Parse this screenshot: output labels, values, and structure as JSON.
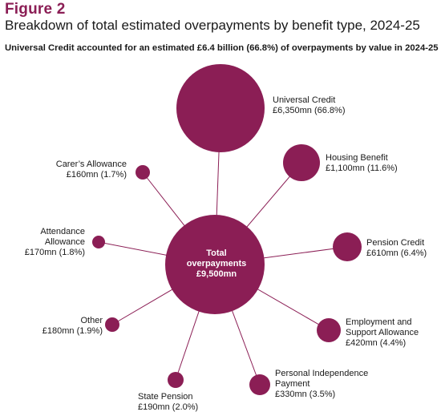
{
  "figure_label": "Figure 2",
  "title": "Breakdown of total estimated overpayments by benefit type, 2024-25",
  "subtitle": "Universal Credit accounted for an estimated £6.4 billion (66.8%) of overpayments by value in 2024-25",
  "colors": {
    "bubble": "#8b1e55",
    "line": "#8b1e55",
    "heading": "#8b1e55"
  },
  "center": {
    "line1": "Total",
    "line2": "overpayments",
    "line3": "£9,500mn"
  },
  "nodes": [
    {
      "id": "universal-credit",
      "lines": [
        "Universal Credit",
        "£6,350mn (66.8%)"
      ],
      "value_mn": 6350,
      "share_pct": 66.8
    },
    {
      "id": "housing-benefit",
      "lines": [
        "Housing Benefit",
        "£1,100mn (11.6%)"
      ],
      "value_mn": 1100,
      "share_pct": 11.6
    },
    {
      "id": "pension-credit",
      "lines": [
        "Pension Credit",
        "£610mn (6.4%)"
      ],
      "value_mn": 610,
      "share_pct": 6.4
    },
    {
      "id": "esa",
      "lines": [
        "Employment and",
        "Support Allowance",
        "£420mn (4.4%)"
      ],
      "value_mn": 420,
      "share_pct": 4.4
    },
    {
      "id": "pip",
      "lines": [
        "Personal Independence",
        "Payment",
        "£330mn (3.5%)"
      ],
      "value_mn": 330,
      "share_pct": 3.5
    },
    {
      "id": "state-pension",
      "lines": [
        "State Pension",
        "£190mn (2.0%)"
      ],
      "value_mn": 190,
      "share_pct": 2.0
    },
    {
      "id": "other",
      "lines": [
        "Other",
        "£180mn (1.9%)"
      ],
      "value_mn": 180,
      "share_pct": 1.9
    },
    {
      "id": "attendance-allowance",
      "lines": [
        "Attendance",
        "Allowance",
        "£170mn (1.8%)"
      ],
      "value_mn": 170,
      "share_pct": 1.8
    },
    {
      "id": "carers-allowance",
      "lines": [
        "Carer’s Allowance",
        "£160mn (1.7%)"
      ],
      "value_mn": 160,
      "share_pct": 1.7
    }
  ]
}
